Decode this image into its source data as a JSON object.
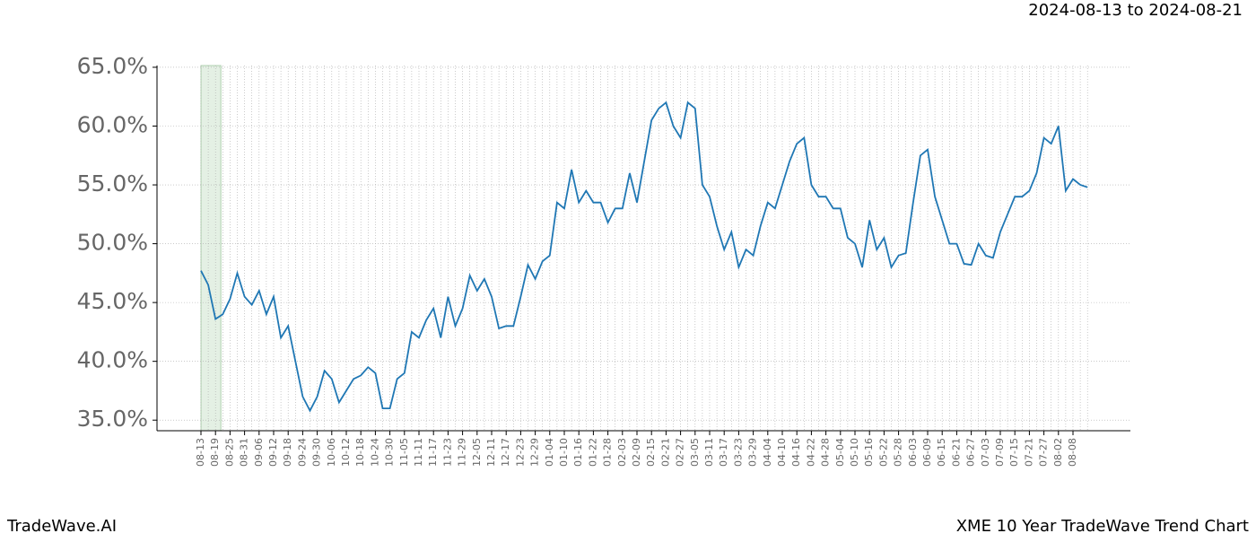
{
  "chart_data": {
    "type": "line",
    "subtitle": "2024-08-13 to 2024-08-21",
    "footer_left": "TradeWave.AI",
    "footer_right": "XME 10 Year TradeWave Trend Chart",
    "highlight": [
      "08-13",
      "08-19"
    ],
    "grid": true,
    "categories": [
      "08-13",
      null,
      "08-19",
      null,
      "08-25",
      null,
      "08-31",
      null,
      "09-06",
      null,
      "09-12",
      null,
      "09-18",
      null,
      "09-24",
      null,
      "09-30",
      null,
      "10-06",
      null,
      "10-12",
      null,
      "10-18",
      null,
      "10-24",
      null,
      "10-30",
      null,
      "11-05",
      null,
      "11-11",
      null,
      "11-17",
      null,
      "11-23",
      null,
      "11-29",
      null,
      "12-05",
      null,
      "12-11",
      null,
      "12-17",
      null,
      "12-23",
      null,
      "12-29",
      null,
      "01-04",
      null,
      "01-10",
      null,
      "01-16",
      null,
      "01-22",
      null,
      "01-28",
      null,
      "02-03",
      null,
      "02-09",
      null,
      "02-15",
      null,
      "02-21",
      null,
      "02-27",
      null,
      "03-05",
      null,
      "03-11",
      null,
      "03-17",
      null,
      "03-23",
      null,
      "03-29",
      null,
      "04-04",
      null,
      "04-10",
      null,
      "04-16",
      null,
      "04-22",
      null,
      "04-28",
      null,
      "05-04",
      null,
      "05-10",
      null,
      "05-16",
      null,
      "05-22",
      null,
      "05-28",
      null,
      "06-03",
      null,
      "06-09",
      null,
      "06-15",
      null,
      "06-21",
      null,
      "06-27",
      null,
      "07-03",
      null,
      "07-09",
      null,
      "07-15",
      null,
      "07-21",
      null,
      "07-27",
      null,
      "08-02",
      null,
      "08-08",
      null,
      null
    ],
    "series": [
      {
        "color": "#1f77b4",
        "values": [
          47.7,
          46.5,
          43.6,
          44.0,
          45.3,
          47.5,
          45.5,
          44.8,
          46.0,
          44.0,
          45.5,
          42.0,
          43.0,
          40.0,
          37.0,
          35.8,
          37.0,
          39.2,
          38.5,
          36.5,
          37.5,
          38.5,
          38.8,
          39.5,
          39.0,
          36.0,
          36.0,
          38.5,
          39.0,
          42.5,
          42.0,
          43.5,
          44.5,
          42.0,
          45.5,
          43.0,
          44.5,
          47.3,
          46.0,
          47.0,
          45.5,
          42.8,
          43.0,
          43.0,
          45.5,
          48.2,
          47.0,
          48.5,
          49.0,
          53.5,
          53.0,
          56.3,
          53.5,
          54.5,
          53.5,
          53.5,
          51.8,
          53.0,
          53.0,
          56.0,
          53.5,
          57.0,
          60.5,
          61.5,
          62.0,
          60.0,
          59.0,
          62.0,
          61.5,
          55.0,
          54.0,
          51.5,
          49.5,
          51.0,
          48.0,
          49.5,
          49.0,
          51.5,
          53.5,
          53.0,
          55.0,
          57.0,
          58.5,
          59.0,
          55.0,
          54.0,
          54.0,
          53.0,
          53.0,
          50.5,
          50.0,
          48.0,
          52.0,
          49.5,
          50.5,
          48.0,
          49.0,
          49.2,
          53.5,
          57.5,
          58.0,
          54.0,
          52.0,
          50.0,
          50.0,
          48.3,
          48.2,
          50.0,
          49.0,
          48.8,
          51.0,
          52.5,
          54.0,
          54.0,
          54.5,
          56.0,
          59.0,
          58.5,
          60.0,
          54.5,
          55.5,
          55.0,
          54.8
        ]
      }
    ],
    "ylim": [
      34.1,
      65.15
    ],
    "yticks": [
      {
        "value": 35,
        "label": "35.0%"
      },
      {
        "value": 40,
        "label": "40.0%"
      },
      {
        "value": 45,
        "label": "45.0%"
      },
      {
        "value": 50,
        "label": "50.0%"
      },
      {
        "value": 55,
        "label": "55.0%"
      },
      {
        "value": 60,
        "label": "60.0%"
      },
      {
        "value": 65,
        "label": "65.0%"
      }
    ]
  }
}
